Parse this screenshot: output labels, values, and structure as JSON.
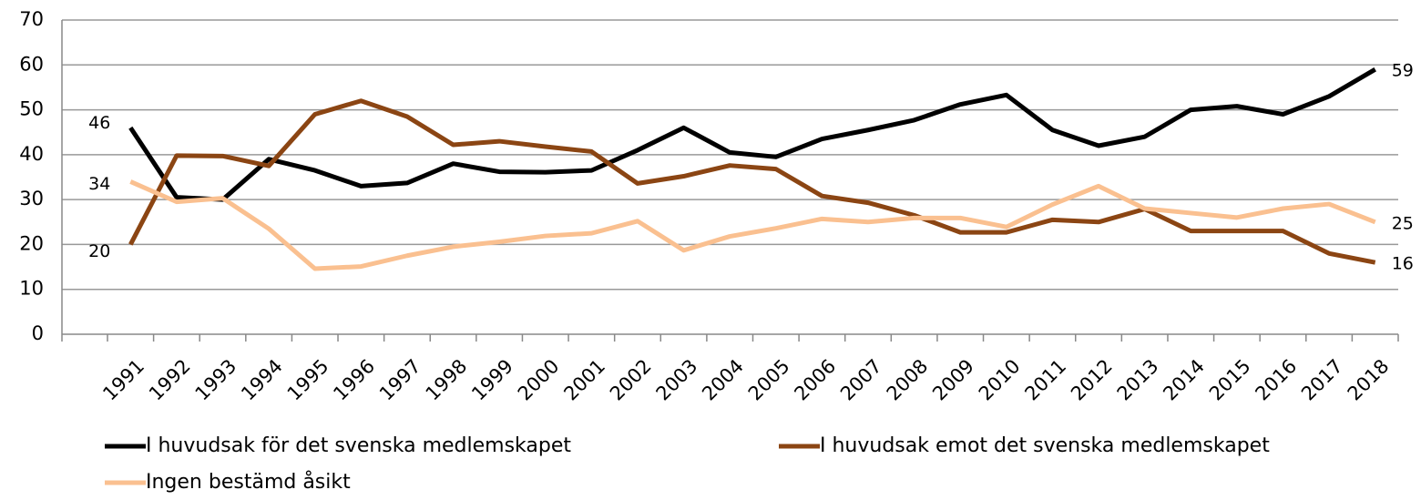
{
  "chart_data": {
    "type": "line",
    "categories": [
      "1991",
      "1992",
      "1993",
      "1994",
      "1995",
      "1996",
      "1997",
      "1998",
      "1999",
      "2000",
      "2001",
      "2002",
      "2003",
      "2004",
      "2005",
      "2006",
      "2007",
      "2008",
      "2009",
      "2010",
      "2011",
      "2012",
      "2013",
      "2014",
      "2015",
      "2016",
      "2017",
      "2018"
    ],
    "series": [
      {
        "name": "I huvudsak för det svenska medlemskapet",
        "color": "#000000",
        "values": [
          46,
          30.5,
          30,
          39,
          36.5,
          33,
          33.7,
          38,
          36.2,
          36.1,
          36.5,
          41,
          46,
          40.5,
          39.5,
          43.5,
          45.5,
          47.7,
          51.2,
          53.3,
          45.5,
          42,
          44,
          50,
          50.8,
          49,
          53,
          59
        ]
      },
      {
        "name": "I huvudsak emot det svenska medlemskapet",
        "color": "#8b4513",
        "values": [
          20,
          39.8,
          39.7,
          37.5,
          49,
          52,
          48.5,
          42.2,
          43,
          41.8,
          40.7,
          33.6,
          35.2,
          37.6,
          36.8,
          30.8,
          29.3,
          26.5,
          22.7,
          22.7,
          25.5,
          25,
          27.9,
          23,
          23,
          23,
          18,
          16
        ]
      },
      {
        "name": "Ingen bestämd åsikt",
        "color": "#fac090",
        "values": [
          34,
          29.5,
          30.3,
          23.5,
          14.6,
          15.1,
          17.5,
          19.5,
          20.6,
          21.9,
          22.5,
          25.2,
          18.7,
          21.8,
          23.6,
          25.7,
          25,
          25.9,
          25.9,
          23.9,
          28.9,
          33,
          28,
          27,
          26,
          28,
          29,
          25
        ]
      }
    ],
    "ylim": [
      0,
      70
    ],
    "yticks": [
      0,
      10,
      20,
      30,
      40,
      50,
      60,
      70
    ],
    "grid": true
  }
}
